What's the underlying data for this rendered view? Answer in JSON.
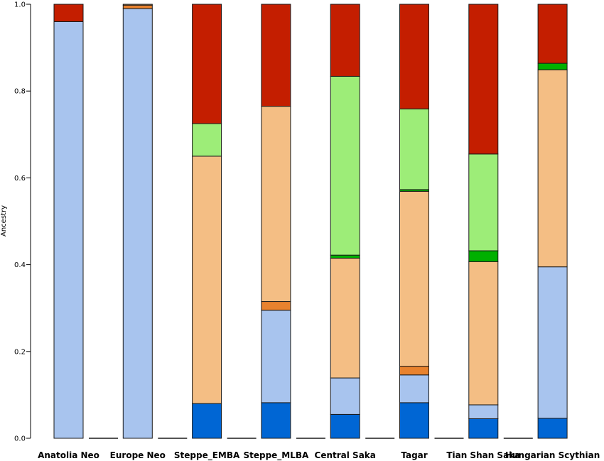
{
  "chart_data": {
    "type": "bar",
    "stacked": true,
    "ylabel": "Ancestry",
    "ylim": [
      0,
      1
    ],
    "yticks": [
      "0.0",
      "0.2",
      "0.4",
      "0.6",
      "0.8",
      "1.0"
    ],
    "grid": false,
    "legend": "none",
    "categories": [
      "Anatolia Neo",
      "Europe Neo",
      "Steppe_EMBA",
      "Steppe_MLBA",
      "Central Saka",
      "Tagar",
      "Tian Shan Saka",
      "Hungarian Scythian"
    ],
    "series": [
      {
        "color": "#0066d4",
        "values": [
          0.0,
          0.0,
          0.08,
          0.082,
          0.055,
          0.082,
          0.045,
          0.046
        ]
      },
      {
        "color": "#a8c4ee",
        "values": [
          0.96,
          0.99,
          0.0,
          0.213,
          0.084,
          0.064,
          0.032,
          0.349
        ]
      },
      {
        "color": "#e8822e",
        "values": [
          0.0,
          0.008,
          0.0,
          0.02,
          0.0,
          0.02,
          0.0,
          0.0
        ]
      },
      {
        "color": "#f4be84",
        "values": [
          0.0,
          0.002,
          0.57,
          0.45,
          0.276,
          0.403,
          0.33,
          0.454
        ]
      },
      {
        "color": "#00b000",
        "values": [
          0.0,
          0.0,
          0.0,
          0.0,
          0.007,
          0.004,
          0.025,
          0.015
        ]
      },
      {
        "color": "#9ded78",
        "values": [
          0.0,
          0.0,
          0.075,
          0.0,
          0.412,
          0.186,
          0.223,
          0.0
        ]
      },
      {
        "color": "#c41e00",
        "values": [
          0.04,
          0.0,
          0.275,
          0.235,
          0.166,
          0.241,
          0.345,
          0.136
        ]
      }
    ]
  }
}
